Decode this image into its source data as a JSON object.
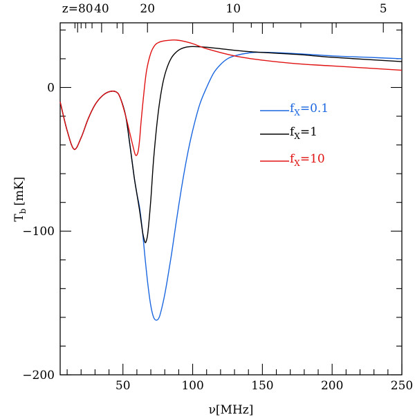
{
  "chart_data": {
    "type": "line",
    "xlabel": "ν[MHz]",
    "ylabel": "T",
    "ylabel_sub": "b",
    "ylabel_unit": "[mK]",
    "xlim": [
      5,
      250
    ],
    "ylim": [
      -200,
      45
    ],
    "x_ticks": [
      50,
      100,
      150,
      200,
      250
    ],
    "x_tick_labels": [
      "50",
      "100",
      "150",
      "200",
      "250"
    ],
    "y_ticks": [
      0,
      -100,
      -200
    ],
    "y_tick_labels": [
      "0",
      "−100",
      "−200"
    ],
    "top_axis": {
      "label": "z",
      "ticks": [
        {
          "text": "z=80",
          "nu": 17.5
        },
        {
          "text": "40",
          "nu": 34.7
        },
        {
          "text": "20",
          "nu": 67.6
        },
        {
          "text": "10",
          "nu": 129.1
        },
        {
          "text": "5",
          "nu": 236.7
        }
      ]
    },
    "legend_position": "center-right",
    "series": [
      {
        "name": "f_X=0.1",
        "label_main": "f",
        "label_sub": "X",
        "label_val": "=0.1",
        "color": "#1a66e0",
        "x": [
          5,
          10,
          15,
          20,
          25,
          30,
          35,
          40,
          45,
          48,
          52,
          55,
          58,
          60,
          62,
          64,
          66,
          68,
          70,
          72,
          74,
          76,
          78,
          80,
          82,
          85,
          88,
          92,
          96,
          100,
          105,
          110,
          115,
          120,
          125,
          130,
          140,
          150,
          175,
          200,
          225,
          250
        ],
        "y": [
          -10,
          -30,
          -43,
          -35,
          -22,
          -12,
          -6,
          -3,
          -3,
          -7,
          -20,
          -40,
          -62,
          -74,
          -84,
          -100,
          -120,
          -138,
          -152,
          -160,
          -162,
          -160,
          -153,
          -144,
          -133,
          -115,
          -95,
          -70,
          -48,
          -30,
          -12,
          0,
          10,
          16,
          20,
          22,
          24,
          24.5,
          23.5,
          22,
          21,
          20
        ]
      },
      {
        "name": "f_X=1",
        "label_main": "f",
        "label_sub": "X",
        "label_val": "=1",
        "color": "#000000",
        "x": [
          5,
          10,
          15,
          20,
          25,
          30,
          35,
          40,
          45,
          48,
          52,
          55,
          58,
          60,
          62,
          64,
          65,
          66,
          67,
          68,
          70,
          72,
          75,
          78,
          81,
          85,
          90,
          95,
          100,
          105,
          110,
          120,
          140,
          175,
          200,
          250
        ],
        "y": [
          -10,
          -30,
          -43,
          -35,
          -22,
          -12,
          -6,
          -3,
          -3,
          -7,
          -20,
          -40,
          -62,
          -74,
          -86,
          -100,
          -105,
          -108,
          -106,
          -100,
          -78,
          -50,
          -20,
          0,
          12,
          21,
          26,
          28,
          28.5,
          28.3,
          28,
          27,
          25,
          23,
          21,
          18
        ]
      },
      {
        "name": "f_X=10",
        "label_main": "f",
        "label_sub": "X",
        "label_val": "=10",
        "color": "#e01010",
        "x": [
          5,
          10,
          15,
          20,
          25,
          30,
          35,
          40,
          45,
          48,
          52,
          55,
          58,
          59,
          60,
          61,
          62,
          63,
          65,
          67,
          70,
          73,
          76,
          80,
          85,
          88,
          92,
          100,
          110,
          130,
          150,
          175,
          200,
          250
        ],
        "y": [
          -10,
          -30,
          -43,
          -35,
          -22,
          -12,
          -6,
          -3,
          -3,
          -7,
          -20,
          -32,
          -44,
          -47,
          -47,
          -44,
          -36,
          -24,
          -4,
          12,
          24,
          29.5,
          31.5,
          32.5,
          33,
          33,
          32.5,
          30.5,
          27,
          22,
          19,
          16.5,
          15,
          12
        ]
      }
    ]
  }
}
